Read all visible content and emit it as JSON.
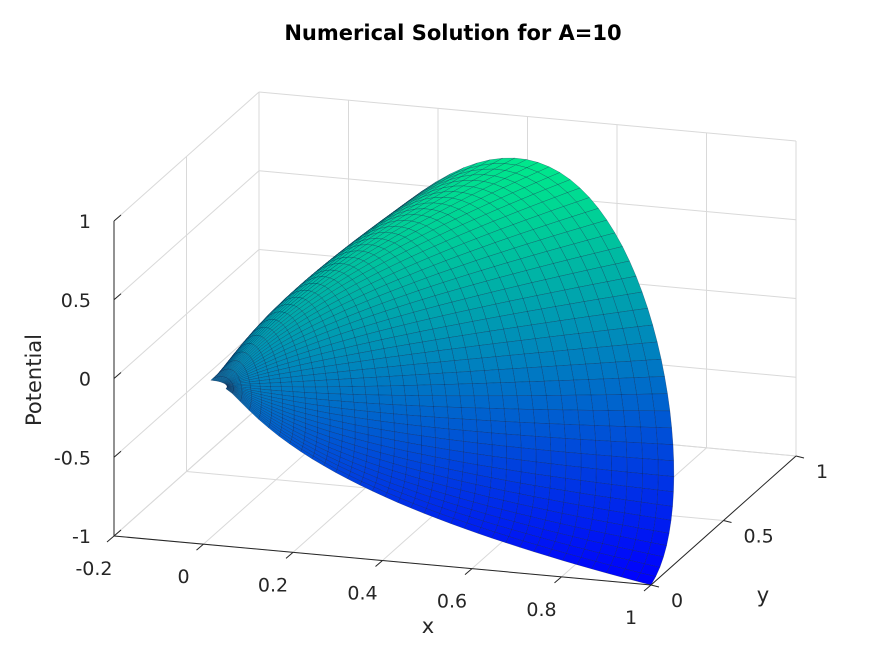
{
  "chart_data": {
    "type": "surface",
    "title": "Numerical Solution for A=10",
    "xlabel": "x",
    "ylabel": "y",
    "zlabel": "Potential",
    "xlim": [
      -0.2,
      1
    ],
    "ylim": [
      0,
      1
    ],
    "zlim": [
      -1,
      1
    ],
    "x_ticks": [
      "-0.2",
      "0",
      "0.2",
      "0.4",
      "0.6",
      "0.8",
      "1"
    ],
    "y_ticks": [
      "0",
      "0.5",
      "1"
    ],
    "z_ticks": [
      "-1",
      "-0.5",
      "0",
      "0.5",
      "1"
    ],
    "grid": true,
    "colormap": "winter",
    "colormap_low": "#0000ff",
    "colormap_high": "#00ff80",
    "domain": "quarter annulus, radius 0.05 to 1, first quadrant",
    "inner_radius": 0.05,
    "outer_radius": 1,
    "boundary_values": {
      "along_x_axis": 0,
      "along_y_axis": 0,
      "inner_arc": 0,
      "outer_arc_peak": 1,
      "point_1_0": -1
    },
    "surface_samples": [
      {
        "x": 1.0,
        "y": 0.0,
        "z": -1.0
      },
      {
        "x": 0.707,
        "y": 0.707,
        "z": 0.6
      },
      {
        "x": 0.26,
        "y": 0.97,
        "z": 1.0
      },
      {
        "x": 0.0,
        "y": 1.0,
        "z": 0.0
      },
      {
        "x": 0.05,
        "y": 0.0,
        "z": 0.0
      },
      {
        "x": 0.5,
        "y": 0.0,
        "z": 0.0
      }
    ]
  }
}
